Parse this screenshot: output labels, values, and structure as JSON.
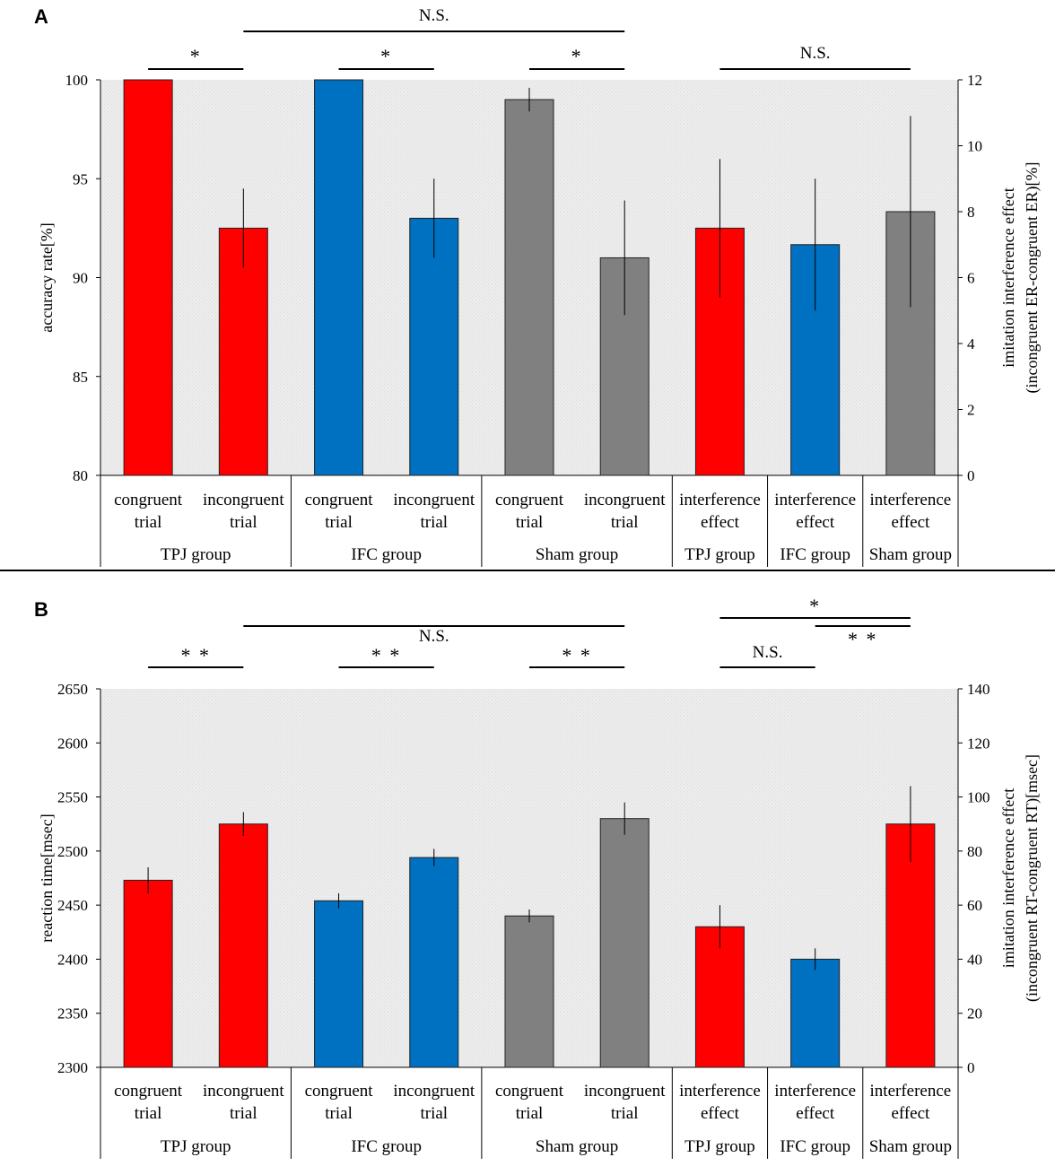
{
  "colors": {
    "red": "#ff0000",
    "blue": "#0070c0",
    "gray": "#808080",
    "plot_bg": "#ececec"
  },
  "chart_data": [
    {
      "panel_label": "A",
      "type": "bar",
      "categories": [
        [
          "congruent",
          "trial"
        ],
        [
          "incongruent",
          "trial"
        ],
        [
          "congruent",
          "trial"
        ],
        [
          "incongruent",
          "trial"
        ],
        [
          "congruent",
          "trial"
        ],
        [
          "incongruent",
          "trial"
        ],
        [
          "interference",
          "effect"
        ],
        [
          "interference",
          "effect"
        ],
        [
          "interference",
          "effect"
        ]
      ],
      "groups": [
        "TPJ group",
        "IFC group",
        "Sham group",
        "TPJ group",
        "IFC group",
        "Sham group"
      ],
      "bar_colors": [
        "red",
        "red",
        "blue",
        "blue",
        "gray",
        "gray",
        "red",
        "blue",
        "gray"
      ],
      "bar_axis": [
        "left",
        "left",
        "left",
        "left",
        "left",
        "left",
        "right",
        "right",
        "right"
      ],
      "values": [
        100,
        92.5,
        100,
        93,
        99,
        91,
        7.5,
        7,
        8
      ],
      "errors": [
        0,
        2,
        0,
        2,
        0.6,
        2.9,
        2.1,
        2.0,
        2.9
      ],
      "ylabel": "accuracy rate[%]",
      "y2label": [
        "imitation interference effect",
        "(incongruent ER-congruent ER)[%]"
      ],
      "ylim": [
        80,
        100
      ],
      "yticks": [
        80,
        85,
        90,
        95,
        100
      ],
      "y2lim": [
        0,
        12
      ],
      "y2ticks": [
        0,
        2,
        4,
        6,
        8,
        10,
        12
      ],
      "annotations": [
        {
          "text": "*",
          "from": 0,
          "to": 1,
          "level": 0
        },
        {
          "text": "*",
          "from": 2,
          "to": 3,
          "level": 0
        },
        {
          "text": "*",
          "from": 4,
          "to": 5,
          "level": 0
        },
        {
          "text": "N.S.",
          "from": 1,
          "to": 5,
          "level": 1
        },
        {
          "text": "N.S.",
          "from": 6,
          "to": 8,
          "level": 0
        }
      ]
    },
    {
      "panel_label": "B",
      "type": "bar",
      "categories": [
        [
          "congruent",
          "trial"
        ],
        [
          "incongruent",
          "trial"
        ],
        [
          "congruent",
          "trial"
        ],
        [
          "incongruent",
          "trial"
        ],
        [
          "congruent",
          "trial"
        ],
        [
          "incongruent",
          "trial"
        ],
        [
          "interference",
          "effect"
        ],
        [
          "interference",
          "effect"
        ],
        [
          "interference",
          "effect"
        ]
      ],
      "groups": [
        "TPJ group",
        "IFC group",
        "Sham group",
        "TPJ group",
        "IFC group",
        "Sham group"
      ],
      "bar_colors": [
        "red",
        "red",
        "blue",
        "blue",
        "gray",
        "gray",
        "red",
        "blue",
        "red"
      ],
      "bar_axis": [
        "left",
        "left",
        "left",
        "left",
        "left",
        "left",
        "right",
        "right",
        "right"
      ],
      "values": [
        2473,
        2525,
        2454,
        2494,
        2440,
        2530,
        52,
        40,
        90
      ],
      "errors": [
        12,
        11,
        7,
        8,
        6,
        15,
        8,
        4,
        14
      ],
      "ylabel": "reaction time[msec]",
      "y2label": [
        "imitation interference effect",
        "(incongruent RT-congruent RT)[msec]"
      ],
      "ylim": [
        2300,
        2650
      ],
      "yticks": [
        2300,
        2350,
        2400,
        2450,
        2500,
        2550,
        2600,
        2650
      ],
      "y2lim": [
        0,
        140
      ],
      "y2ticks": [
        0,
        20,
        40,
        60,
        80,
        100,
        120,
        140
      ],
      "annotations": [
        {
          "text": "* *",
          "from": 0,
          "to": 1,
          "level": 0
        },
        {
          "text": "* *",
          "from": 2,
          "to": 3,
          "level": 0
        },
        {
          "text": "* *",
          "from": 4,
          "to": 5,
          "level": 0
        },
        {
          "text": "N.S.",
          "from": 1,
          "to": 5,
          "level": 1
        },
        {
          "text": "N.S.",
          "from": 6,
          "to": 7,
          "level": 0
        },
        {
          "text": "* *",
          "from": 7,
          "to": 8,
          "level": 1
        },
        {
          "text": "*",
          "from": 6,
          "to": 8,
          "level": 2
        }
      ]
    }
  ]
}
